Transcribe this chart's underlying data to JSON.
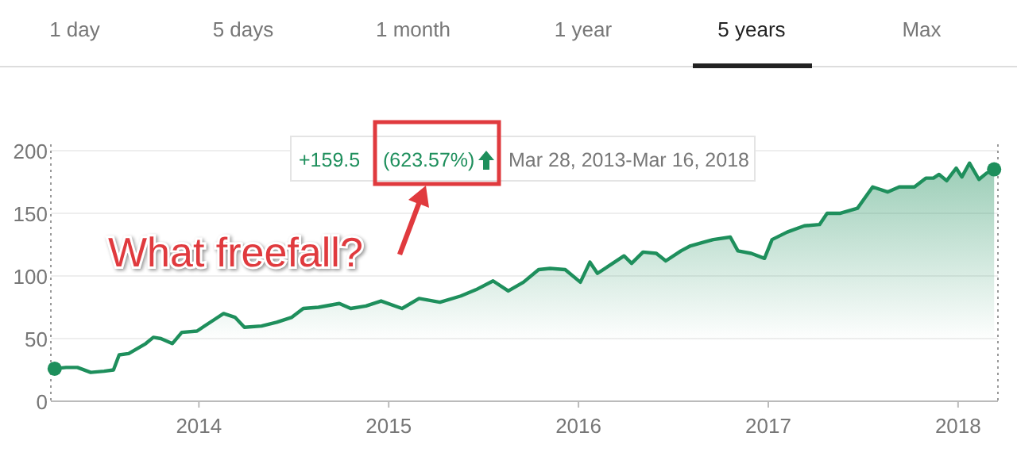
{
  "chart_data": {
    "type": "area",
    "x": [
      2013.24,
      2013.3,
      2013.36,
      2013.43,
      2013.5,
      2013.55,
      2013.58,
      2013.63,
      2013.72,
      2013.76,
      2013.8,
      2013.86,
      2013.91,
      2013.99,
      2014.08,
      2014.13,
      2014.19,
      2014.24,
      2014.33,
      2014.41,
      2014.49,
      2014.55,
      2014.63,
      2014.74,
      2014.8,
      2014.88,
      2014.96,
      2015.07,
      2015.16,
      2015.27,
      2015.38,
      2015.46,
      2015.55,
      2015.63,
      2015.71,
      2015.79,
      2015.85,
      2015.93,
      2016.01,
      2016.06,
      2016.1,
      2016.18,
      2016.24,
      2016.28,
      2016.34,
      2016.41,
      2016.46,
      2016.54,
      2016.59,
      2016.66,
      2016.71,
      2016.8,
      2016.84,
      2016.91,
      2016.98,
      2017.02,
      2017.1,
      2017.19,
      2017.27,
      2017.31,
      2017.38,
      2017.47,
      2017.55,
      2017.63,
      2017.69,
      2017.77,
      2017.83,
      2017.87,
      2017.9,
      2017.94,
      2017.99,
      2018.02,
      2018.06,
      2018.11,
      2018.15,
      2018.19
    ],
    "series": [
      {
        "color": "#1e8f5c",
        "values": [
          26,
          27,
          27,
          23,
          24,
          25,
          37,
          38,
          46,
          51,
          50,
          46,
          55,
          56,
          65,
          70,
          67,
          59,
          60,
          63,
          67,
          74,
          75,
          78,
          74,
          76,
          80,
          74,
          82,
          79,
          84,
          89,
          96,
          88,
          95,
          105,
          106,
          105,
          95,
          111,
          102,
          110,
          116,
          110,
          119,
          118,
          112,
          120,
          124,
          127,
          129,
          131,
          120,
          118,
          114,
          129,
          135,
          140,
          141,
          150,
          150,
          154,
          171,
          167,
          171,
          171,
          178,
          178,
          181,
          176,
          186,
          179,
          190,
          177,
          182,
          185
        ]
      },
      {
        "type": "scatter",
        "color": "#1e8f5c",
        "marker": "circle",
        "x": [
          2013.24,
          2018.19
        ],
        "values": [
          26,
          185
        ]
      }
    ],
    "xlim": [
      2013.22,
      2018.21
    ],
    "xticks": [
      2014,
      2015,
      2016,
      2017,
      2018
    ],
    "ylim": [
      0,
      205
    ],
    "yticks": [
      0,
      50,
      100,
      150,
      200
    ],
    "grid": "y",
    "annotations": [
      "1 day",
      "5 days",
      "1 month",
      "1 year",
      "5 years",
      "Max",
      "+159.5",
      "(623.57%)",
      "Mar 28, 2013-Mar 16, 2018",
      "What freefall?"
    ]
  }
}
